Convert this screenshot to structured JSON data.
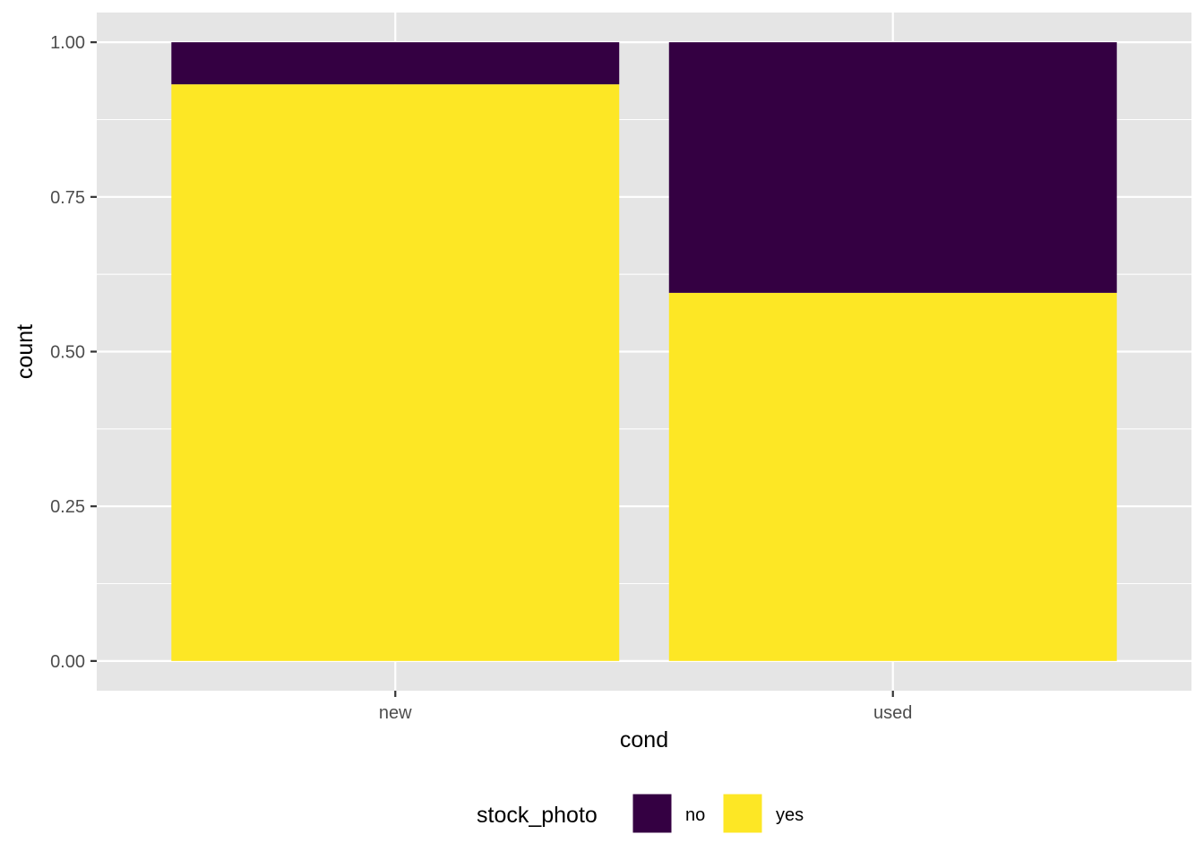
{
  "chart_data": {
    "type": "bar",
    "stacked": true,
    "categories": [
      "new",
      "used"
    ],
    "series": [
      {
        "name": "no",
        "values": [
          0.068,
          0.405
        ],
        "color": "#340042"
      },
      {
        "name": "yes",
        "values": [
          0.932,
          0.595
        ],
        "color": "#FDE725"
      }
    ],
    "xlabel": "cond",
    "ylabel": "count",
    "ylim": [
      -0.048,
      1.048
    ],
    "yticks": [
      "0.00",
      "0.25",
      "0.50",
      "0.75",
      "1.00"
    ],
    "ytick_values": [
      0,
      0.25,
      0.5,
      0.75,
      1.0
    ],
    "grid": true,
    "legend": {
      "title": "stock_photo",
      "position": "bottom",
      "entries": [
        "no",
        "yes"
      ]
    },
    "panel_background": "#E5E5E5",
    "grid_color": "#FFFFFF"
  }
}
